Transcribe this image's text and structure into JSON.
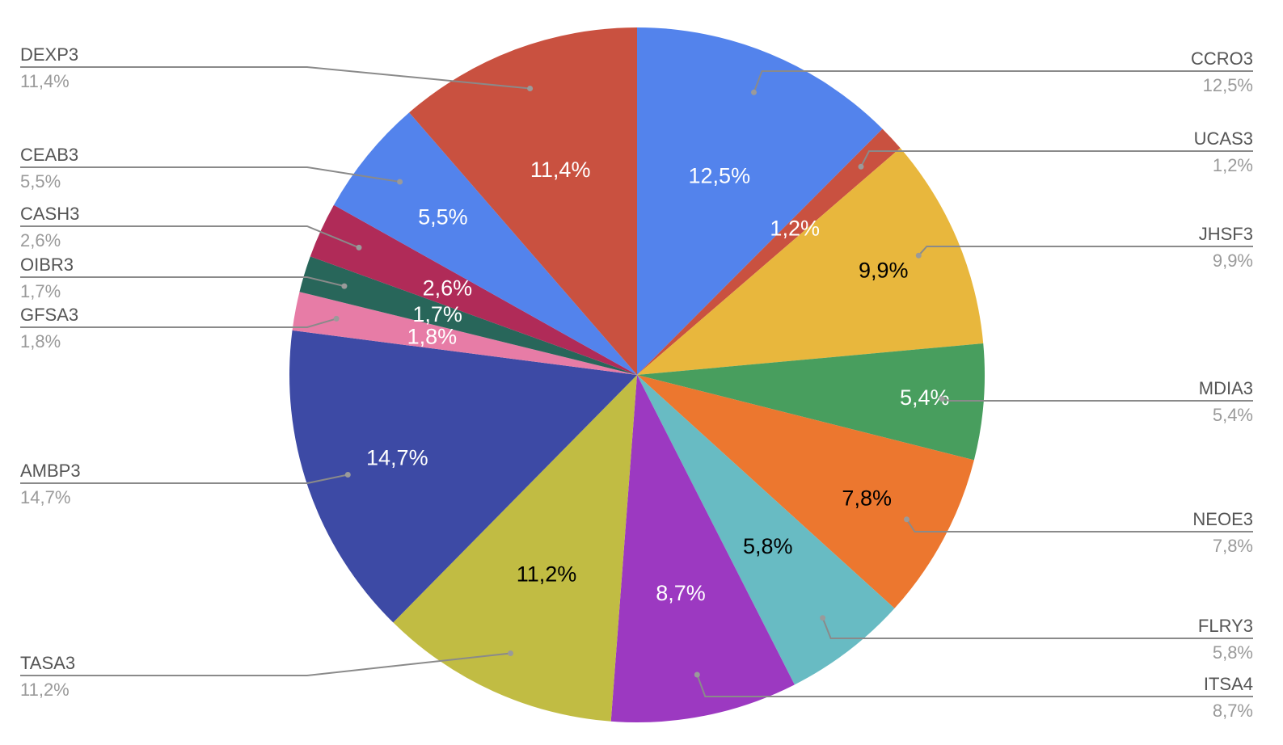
{
  "chart_data": {
    "type": "pie",
    "title": "",
    "start_angle_deg": 0,
    "direction": "clockwise",
    "slices": [
      {
        "label": "CCRO3",
        "value": 12.5,
        "display": "12,5%",
        "color": "#5383EC",
        "text_color": "#ffffff"
      },
      {
        "label": "UCAS3",
        "value": 1.2,
        "display": "1,2%",
        "color": "#C95140",
        "text_color": "#ffffff"
      },
      {
        "label": "JHSF3",
        "value": 9.9,
        "display": "9,9%",
        "color": "#E8B73D",
        "text_color": "#000000"
      },
      {
        "label": "MDIA3",
        "value": 5.4,
        "display": "5,4%",
        "color": "#489E5E",
        "text_color": "#ffffff"
      },
      {
        "label": "NEOE3",
        "value": 7.8,
        "display": "7,8%",
        "color": "#EC772F",
        "text_color": "#000000"
      },
      {
        "label": "FLRY3",
        "value": 5.8,
        "display": "5,8%",
        "color": "#68BBC3",
        "text_color": "#000000"
      },
      {
        "label": "ITSA4",
        "value": 8.7,
        "display": "8,7%",
        "color": "#9C39C1",
        "text_color": "#ffffff"
      },
      {
        "label": "TASA3",
        "value": 11.2,
        "display": "11,2%",
        "color": "#C1BC43",
        "text_color": "#000000"
      },
      {
        "label": "AMBP3",
        "value": 14.7,
        "display": "14,7%",
        "color": "#3D4AA5",
        "text_color": "#ffffff"
      },
      {
        "label": "GFSA3",
        "value": 1.8,
        "display": "1,8%",
        "color": "#E77CA6",
        "text_color": "#ffffff"
      },
      {
        "label": "OIBR3",
        "value": 1.7,
        "display": "1,7%",
        "color": "#28665A",
        "text_color": "#ffffff"
      },
      {
        "label": "CASH3",
        "value": 2.6,
        "display": "2,6%",
        "color": "#B02B58",
        "text_color": "#ffffff"
      },
      {
        "label": "CEAB3",
        "value": 5.5,
        "display": "5,5%",
        "color": "#5383EC",
        "text_color": "#ffffff"
      },
      {
        "label": "DEXP3",
        "value": 11.4,
        "display": "11,4%",
        "color": "#C95140",
        "text_color": "#ffffff"
      }
    ]
  }
}
